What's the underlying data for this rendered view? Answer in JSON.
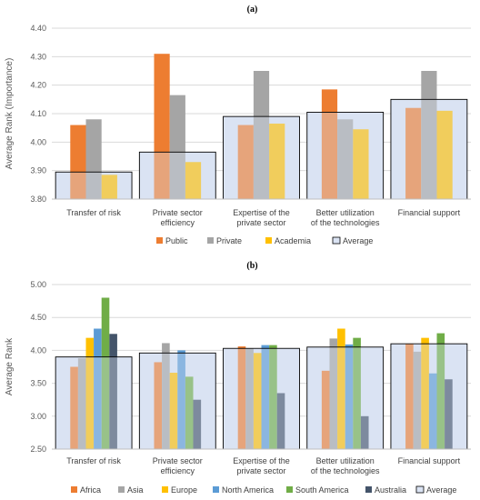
{
  "chart_data": [
    {
      "type": "bar",
      "panel_label": "(a)",
      "title": "",
      "ylabel": "Average Rank (Importance)",
      "ylim": [
        3.8,
        4.4
      ],
      "yticks": [
        "3.80",
        "3.90",
        "4.00",
        "4.10",
        "4.20",
        "4.30",
        "4.40"
      ],
      "categories": [
        [
          "Transfer of risk"
        ],
        [
          "Private sector",
          "efficiency"
        ],
        [
          "Expertise of the",
          "private sector"
        ],
        [
          "Better utilization",
          "of the technologies"
        ],
        [
          "Financial support"
        ]
      ],
      "series": [
        {
          "name": "Public",
          "color": "#ED7D31",
          "values": [
            4.06,
            4.31,
            4.06,
            4.185,
            4.12
          ]
        },
        {
          "name": "Private",
          "color": "#A5A5A5",
          "values": [
            4.08,
            4.165,
            4.25,
            4.08,
            4.25
          ]
        },
        {
          "name": "Academia",
          "color": "#FFC000",
          "values": [
            3.885,
            3.93,
            4.065,
            4.045,
            4.11
          ]
        }
      ],
      "average": {
        "name": "Average",
        "values": [
          3.895,
          3.965,
          4.09,
          4.105,
          4.15
        ]
      },
      "grid": true,
      "legend_position": "bottom"
    },
    {
      "type": "bar",
      "panel_label": "(b)",
      "title": "",
      "ylabel": "Average Rank",
      "ylim": [
        2.5,
        5.0
      ],
      "yticks": [
        "2.50",
        "3.00",
        "3.50",
        "4.00",
        "4.50",
        "5.00"
      ],
      "categories": [
        [
          "Transfer of risk"
        ],
        [
          "Private sector",
          "efficiency"
        ],
        [
          "Expertise of the",
          "private sector"
        ],
        [
          "Better utilization",
          "of the technologies"
        ],
        [
          "Financial support"
        ]
      ],
      "series": [
        {
          "name": "Africa",
          "color": "#ED7D31",
          "values": [
            3.75,
            3.82,
            4.06,
            3.69,
            4.1
          ]
        },
        {
          "name": "Asia",
          "color": "#A5A5A5",
          "values": [
            3.88,
            4.11,
            4.03,
            4.18,
            3.98
          ]
        },
        {
          "name": "Europe",
          "color": "#FFC000",
          "values": [
            4.19,
            3.66,
            3.96,
            4.33,
            4.19
          ]
        },
        {
          "name": "North America",
          "color": "#5B9BD5",
          "values": [
            4.33,
            4.0,
            4.08,
            4.09,
            3.65
          ]
        },
        {
          "name": "South America",
          "color": "#70AD47",
          "values": [
            4.8,
            3.6,
            4.08,
            4.19,
            4.26
          ]
        },
        {
          "name": "Australia",
          "color": "#44546A",
          "values": [
            4.25,
            3.25,
            3.35,
            3.0,
            3.56
          ]
        }
      ],
      "average": {
        "name": "Average",
        "values": [
          3.9,
          3.96,
          4.03,
          4.05,
          4.1
        ]
      },
      "grid": true,
      "legend_position": "bottom"
    }
  ]
}
